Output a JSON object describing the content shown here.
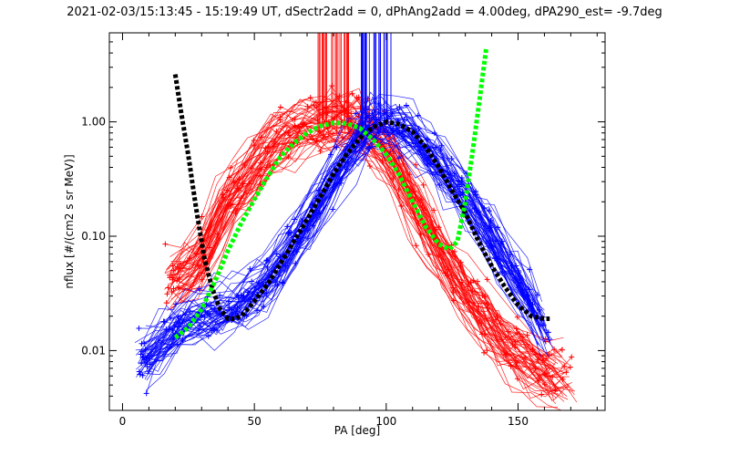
{
  "chart_data": {
    "type": "line",
    "title": "2021-02-03/15:13:45 - 15:19:49 UT, dSectr2add = 0, dPhAng2add = 4.00deg, dPA290_est=  -9.7deg",
    "xlabel": "PA [deg]",
    "ylabel": "nflux [#/(cm2 s sr MeV)]",
    "xlim": [
      -5,
      183
    ],
    "ylim": [
      0.003,
      6
    ],
    "yscale": "log",
    "x_ticks": [
      0,
      50,
      100,
      150
    ],
    "y_ticks": [
      0.01,
      0.1,
      1.0
    ],
    "x_tick_labels": [
      "0",
      "50",
      "100",
      "150"
    ],
    "y_tick_labels": [
      "0.01",
      "0.10",
      "1.00"
    ],
    "grid": false,
    "colors": {
      "red": "#ff0000",
      "blue": "#0000ff",
      "black": "#000000",
      "green": "#00ff00"
    },
    "series": [
      {
        "style": "thick dashed",
        "color": "#000000",
        "points": [
          [
            20,
            2.6
          ],
          [
            22,
            1.3
          ],
          [
            25,
            0.5
          ],
          [
            28,
            0.17
          ],
          [
            31,
            0.065
          ],
          [
            34,
            0.035
          ],
          [
            37,
            0.023
          ],
          [
            40,
            0.019
          ],
          [
            43,
            0.019
          ],
          [
            46,
            0.021
          ],
          [
            50,
            0.027
          ],
          [
            55,
            0.038
          ],
          [
            60,
            0.058
          ],
          [
            65,
            0.09
          ],
          [
            70,
            0.14
          ],
          [
            75,
            0.22
          ],
          [
            80,
            0.35
          ],
          [
            85,
            0.52
          ],
          [
            90,
            0.72
          ],
          [
            95,
            0.9
          ],
          [
            100,
            1.0
          ],
          [
            105,
            0.95
          ],
          [
            110,
            0.82
          ],
          [
            115,
            0.6
          ],
          [
            120,
            0.4
          ],
          [
            125,
            0.25
          ],
          [
            130,
            0.16
          ],
          [
            135,
            0.09
          ],
          [
            140,
            0.055
          ],
          [
            145,
            0.036
          ],
          [
            150,
            0.025
          ],
          [
            155,
            0.02
          ],
          [
            160,
            0.019
          ],
          [
            162,
            0.019
          ]
        ]
      },
      {
        "style": "thick dashed",
        "color": "#00ff00",
        "points": [
          [
            20,
            0.013
          ],
          [
            25,
            0.016
          ],
          [
            30,
            0.023
          ],
          [
            35,
            0.04
          ],
          [
            40,
            0.075
          ],
          [
            45,
            0.13
          ],
          [
            50,
            0.21
          ],
          [
            55,
            0.33
          ],
          [
            60,
            0.5
          ],
          [
            65,
            0.65
          ],
          [
            70,
            0.8
          ],
          [
            75,
            0.92
          ],
          [
            80,
            0.98
          ],
          [
            85,
            0.97
          ],
          [
            90,
            0.88
          ],
          [
            95,
            0.7
          ],
          [
            100,
            0.52
          ],
          [
            105,
            0.34
          ],
          [
            110,
            0.2
          ],
          [
            115,
            0.12
          ],
          [
            120,
            0.085
          ],
          [
            124,
            0.077
          ],
          [
            127,
            0.09
          ],
          [
            130,
            0.2
          ],
          [
            133,
            0.6
          ],
          [
            136,
            2.0
          ],
          [
            138,
            4.5
          ]
        ]
      }
    ],
    "scatter_clouds": [
      {
        "color": "#ff0000",
        "description_points": [
          [
            19,
            0.04
          ],
          [
            25,
            0.045
          ],
          [
            30,
            0.06
          ],
          [
            40,
            0.2
          ],
          [
            50,
            0.35
          ],
          [
            60,
            0.7
          ],
          [
            70,
            0.85
          ],
          [
            80,
            0.95
          ],
          [
            90,
            0.9
          ],
          [
            100,
            0.55
          ],
          [
            110,
            0.2
          ],
          [
            120,
            0.07
          ],
          [
            130,
            0.03
          ],
          [
            140,
            0.015
          ],
          [
            150,
            0.009
          ],
          [
            160,
            0.006
          ],
          [
            170,
            0.005
          ]
        ]
      },
      {
        "color": "#0000ff",
        "description_points": [
          [
            8,
            0.008
          ],
          [
            15,
            0.012
          ],
          [
            25,
            0.018
          ],
          [
            35,
            0.02
          ],
          [
            45,
            0.025
          ],
          [
            55,
            0.04
          ],
          [
            65,
            0.08
          ],
          [
            75,
            0.2
          ],
          [
            85,
            0.5
          ],
          [
            95,
            0.95
          ],
          [
            105,
            0.9
          ],
          [
            115,
            0.6
          ],
          [
            125,
            0.3
          ],
          [
            135,
            0.15
          ],
          [
            145,
            0.06
          ],
          [
            155,
            0.025
          ],
          [
            162,
            0.012
          ]
        ]
      }
    ]
  }
}
